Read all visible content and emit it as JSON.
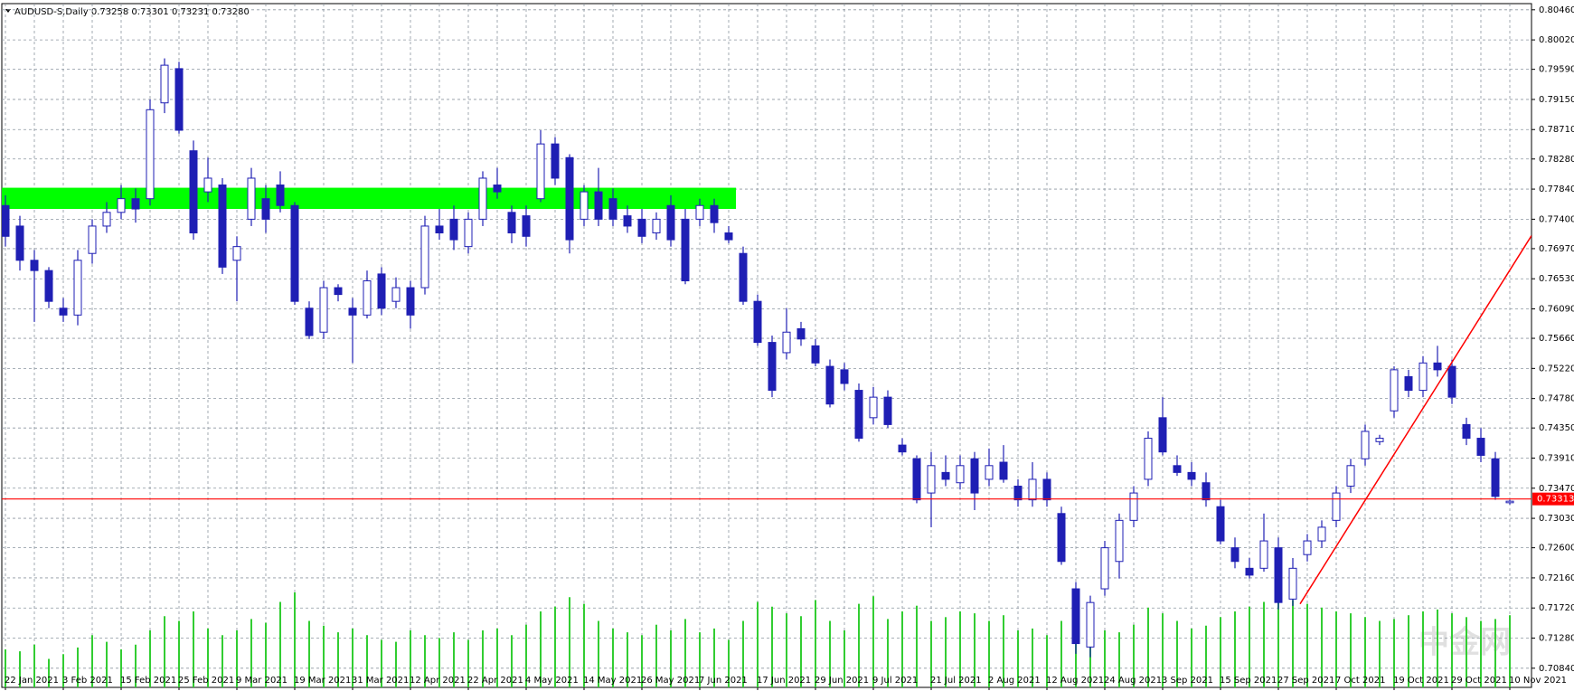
{
  "chart_data": {
    "type": "candlestick",
    "header": {
      "symbol": "AUDUSD-S,Daily",
      "quote": [
        0.73258,
        0.73301,
        0.73231,
        {
          "value": 0.7328,
          "label": "0.73280"
        }
      ]
    },
    "categories": [
      "22 Jan 2021",
      null,
      null,
      null,
      "3 Feb 2021",
      null,
      null,
      null,
      "15 Feb 2021",
      null,
      null,
      null,
      "25 Feb 2021",
      null,
      null,
      null,
      "9 Mar 2021",
      null,
      null,
      null,
      "19 Mar 2021",
      null,
      null,
      null,
      "31 Mar 2021",
      null,
      null,
      null,
      "12 Apr 2021",
      null,
      null,
      null,
      "22 Apr 2021",
      null,
      null,
      null,
      "4 May 2021",
      null,
      null,
      null,
      "14 May 2021",
      null,
      null,
      null,
      "26 May 2021",
      null,
      null,
      null,
      "7 Jun 2021",
      null,
      null,
      null,
      "17 Jun 2021",
      null,
      null,
      null,
      "29 Jun 2021",
      null,
      null,
      null,
      "9 Jul 2021",
      null,
      null,
      null,
      "21 Jul 2021",
      null,
      null,
      null,
      "2 Aug 2021",
      null,
      null,
      null,
      "12 Aug 2021",
      null,
      null,
      null,
      "24 Aug 2021",
      null,
      null,
      null,
      "3 Sep 2021",
      null,
      null,
      null,
      "15 Sep 2021",
      null,
      null,
      null,
      "27 Sep 2021",
      null,
      null,
      null,
      "7 Oct 2021",
      null,
      null,
      null,
      "19 Oct 2021",
      null,
      null,
      null,
      "29 Oct 2021",
      null,
      null,
      null,
      "10 Nov 2021"
    ],
    "candles": [
      [
        0.776,
        0.7775,
        0.77,
        0.7715
      ],
      [
        0.773,
        0.7745,
        0.7665,
        0.768
      ],
      [
        0.768,
        0.7695,
        0.759,
        0.7665
      ],
      [
        0.7665,
        0.767,
        0.761,
        0.762
      ],
      [
        0.761,
        0.7625,
        0.759,
        0.76
      ],
      [
        0.76,
        0.7695,
        0.7585,
        0.768
      ],
      [
        0.769,
        0.774,
        0.7675,
        0.773
      ],
      [
        0.773,
        0.7765,
        0.772,
        0.775
      ],
      [
        0.775,
        0.779,
        0.774,
        0.777
      ],
      [
        0.777,
        0.7785,
        0.7735,
        0.7755
      ],
      [
        0.777,
        0.7915,
        0.776,
        0.79
      ],
      [
        0.791,
        0.7975,
        0.7895,
        0.7965
      ],
      [
        0.796,
        0.797,
        0.7865,
        0.787
      ],
      [
        0.784,
        0.7855,
        0.771,
        0.772
      ],
      [
        0.778,
        0.783,
        0.7765,
        0.78
      ],
      [
        0.779,
        0.78,
        0.766,
        0.767
      ],
      [
        0.768,
        0.7715,
        0.762,
        0.77
      ],
      [
        0.774,
        0.7815,
        0.773,
        0.78
      ],
      [
        0.777,
        0.779,
        0.772,
        0.774
      ],
      [
        0.779,
        0.781,
        0.775,
        0.776
      ],
      [
        0.776,
        0.7765,
        0.7615,
        0.762
      ],
      [
        0.761,
        0.762,
        0.7565,
        0.757
      ],
      [
        0.7575,
        0.765,
        0.7565,
        0.764
      ],
      [
        0.764,
        0.7645,
        0.762,
        0.763
      ],
      [
        0.761,
        0.7625,
        0.753,
        0.76
      ],
      [
        0.76,
        0.7665,
        0.7595,
        0.765
      ],
      [
        0.766,
        0.767,
        0.76,
        0.761
      ],
      [
        0.762,
        0.7655,
        0.761,
        0.764
      ],
      [
        0.764,
        0.765,
        0.758,
        0.76
      ],
      [
        0.764,
        0.7745,
        0.763,
        0.773
      ],
      [
        0.773,
        0.7755,
        0.771,
        0.772
      ],
      [
        0.774,
        0.776,
        0.7695,
        0.771
      ],
      [
        0.77,
        0.775,
        0.769,
        0.774
      ],
      [
        0.774,
        0.781,
        0.773,
        0.78
      ],
      [
        0.779,
        0.7815,
        0.777,
        0.778
      ],
      [
        0.775,
        0.776,
        0.7705,
        0.772
      ],
      [
        0.7745,
        0.776,
        0.77,
        0.7715
      ],
      [
        0.777,
        0.787,
        0.7765,
        0.785
      ],
      [
        0.785,
        0.786,
        0.779,
        0.78
      ],
      [
        0.783,
        0.7835,
        0.769,
        0.771
      ],
      [
        0.774,
        0.779,
        0.773,
        0.778
      ],
      [
        0.778,
        0.7815,
        0.773,
        0.774
      ],
      [
        0.777,
        0.7785,
        0.773,
        0.774
      ],
      [
        0.7745,
        0.776,
        0.772,
        0.773
      ],
      [
        0.774,
        0.7755,
        0.7705,
        0.7715
      ],
      [
        0.772,
        0.775,
        0.771,
        0.774
      ],
      [
        0.776,
        0.7775,
        0.77,
        0.771
      ],
      [
        0.774,
        0.7755,
        0.7645,
        0.765
      ],
      [
        0.774,
        0.777,
        0.773,
        0.776
      ],
      [
        0.776,
        0.777,
        0.772,
        0.7735
      ],
      [
        0.772,
        0.773,
        0.7705,
        0.771
      ],
      [
        0.769,
        0.77,
        0.7615,
        0.762
      ],
      [
        0.762,
        0.763,
        0.7555,
        0.756
      ],
      [
        0.756,
        0.757,
        0.748,
        0.749
      ],
      [
        0.7545,
        0.761,
        0.7535,
        0.7575
      ],
      [
        0.758,
        0.759,
        0.7555,
        0.7565
      ],
      [
        0.7555,
        0.7565,
        0.7525,
        0.753
      ],
      [
        0.7525,
        0.7535,
        0.7465,
        0.747
      ],
      [
        0.752,
        0.753,
        0.749,
        0.75
      ],
      [
        0.749,
        0.75,
        0.7415,
        0.742
      ],
      [
        0.745,
        0.7495,
        0.744,
        0.748
      ],
      [
        0.748,
        0.749,
        0.7435,
        0.744
      ],
      [
        0.741,
        0.742,
        0.7395,
        0.74
      ],
      [
        0.739,
        0.7395,
        0.7325,
        0.733
      ],
      [
        0.734,
        0.74,
        0.729,
        0.738
      ],
      [
        0.737,
        0.7395,
        0.735,
        0.736
      ],
      [
        0.7355,
        0.7395,
        0.7345,
        0.738
      ],
      [
        0.739,
        0.74,
        0.7315,
        0.734
      ],
      [
        0.736,
        0.7405,
        0.735,
        0.738
      ],
      [
        0.7385,
        0.741,
        0.7355,
        0.736
      ],
      [
        0.735,
        0.736,
        0.732,
        0.733
      ],
      [
        0.733,
        0.7385,
        0.732,
        0.736
      ],
      [
        0.736,
        0.737,
        0.732,
        0.733
      ],
      [
        0.731,
        0.732,
        0.7235,
        0.724
      ],
      [
        0.72,
        0.721,
        0.7105,
        0.712
      ],
      [
        0.7115,
        0.719,
        0.71,
        0.718
      ],
      [
        0.72,
        0.727,
        0.719,
        0.726
      ],
      [
        0.724,
        0.731,
        0.7215,
        0.73
      ],
      [
        0.73,
        0.735,
        0.729,
        0.734
      ],
      [
        0.736,
        0.743,
        0.735,
        0.742
      ],
      [
        0.745,
        0.748,
        0.7395,
        0.74
      ],
      [
        0.738,
        0.7395,
        0.7365,
        0.737
      ],
      [
        0.737,
        0.7385,
        0.735,
        0.736
      ],
      [
        0.7355,
        0.737,
        0.732,
        0.733
      ],
      [
        0.732,
        0.733,
        0.7265,
        0.727
      ],
      [
        0.726,
        0.7275,
        0.723,
        0.724
      ],
      [
        0.723,
        0.7245,
        0.7215,
        0.722
      ],
      [
        0.723,
        0.731,
        0.7225,
        0.727
      ],
      [
        0.726,
        0.7275,
        0.717,
        0.718
      ],
      [
        0.7185,
        0.7245,
        0.7175,
        0.723
      ],
      [
        0.725,
        0.728,
        0.724,
        0.727
      ],
      [
        0.727,
        0.73,
        0.726,
        0.729
      ],
      [
        0.73,
        0.735,
        0.729,
        0.734
      ],
      [
        0.735,
        0.739,
        0.734,
        0.738
      ],
      [
        0.739,
        0.744,
        0.738,
        0.743
      ],
      [
        0.7415,
        0.7425,
        0.741,
        0.742
      ],
      [
        0.746,
        0.7525,
        0.745,
        0.752
      ],
      [
        0.751,
        0.752,
        0.748,
        0.749
      ],
      [
        0.749,
        0.754,
        0.748,
        0.753
      ],
      [
        0.753,
        0.7555,
        0.751,
        0.752
      ],
      [
        0.7525,
        0.7535,
        0.747,
        0.748
      ],
      [
        0.744,
        0.745,
        0.741,
        0.742
      ],
      [
        0.742,
        0.7435,
        0.7385,
        0.7395
      ],
      [
        0.739,
        0.74,
        0.733,
        0.7335
      ],
      [
        0.73258,
        0.73301,
        0.73231,
        0.7328
      ]
    ],
    "volume": [
      40,
      38,
      45,
      30,
      35,
      42,
      55,
      48,
      40,
      45,
      60,
      75,
      70,
      80,
      62,
      55,
      60,
      72,
      68,
      90,
      100,
      70,
      65,
      58,
      62,
      55,
      50,
      48,
      60,
      55,
      52,
      58,
      50,
      60,
      62,
      55,
      66,
      80,
      85,
      95,
      88,
      70,
      62,
      58,
      55,
      66,
      60,
      72,
      58,
      62,
      50,
      70,
      90,
      85,
      78,
      75,
      92,
      70,
      60,
      88,
      96,
      72,
      80,
      86,
      70,
      74,
      80,
      78,
      70,
      76,
      60,
      62,
      55,
      70,
      68,
      72,
      60,
      58,
      66,
      84,
      78,
      70,
      62,
      65,
      74,
      80,
      85,
      90,
      95,
      92,
      88,
      84,
      80,
      78,
      74,
      70,
      72,
      76,
      80,
      82,
      78,
      74,
      70,
      72,
      76
    ],
    "up_color": "#ffffff",
    "down_color": "#1f1fb4",
    "volume_color": "#32cd32",
    "ylim": [
      0.7056,
      0.8055
    ],
    "yticks": [
      {
        "value": 0.8046,
        "label": "0.80460"
      },
      {
        "value": 0.8002,
        "label": "0.80020"
      },
      {
        "value": 0.7959,
        "label": "0.79590"
      },
      {
        "value": 0.7915,
        "label": "0.79150"
      },
      {
        "value": 0.7871,
        "label": "0.78710"
      },
      {
        "value": 0.7828,
        "label": "0.78280"
      },
      {
        "value": 0.7784,
        "label": "0.77840"
      },
      {
        "value": 0.774,
        "label": "0.77400"
      },
      {
        "value": 0.7697,
        "label": "0.76970"
      },
      {
        "value": 0.7653,
        "label": "0.76530"
      },
      {
        "value": 0.7609,
        "label": "0.76090"
      },
      {
        "value": 0.7566,
        "label": "0.75660"
      },
      {
        "value": 0.7522,
        "label": "0.75220"
      },
      {
        "value": 0.7478,
        "label": "0.74780"
      },
      {
        "value": 0.7435,
        "label": "0.74350"
      },
      {
        "value": 0.7391,
        "label": "0.73910"
      },
      {
        "value": 0.7347,
        "label": "0.73470"
      },
      {
        "value": 0.7303,
        "label": "0.73030"
      },
      {
        "value": 0.726,
        "label": "0.72600"
      },
      {
        "value": 0.7216,
        "label": "0.72160"
      },
      {
        "value": 0.7172,
        "label": "0.71720"
      },
      {
        "value": 0.7128,
        "label": "0.71280"
      },
      {
        "value": 0.7084,
        "label": "0.70840"
      }
    ],
    "grid": true,
    "price_line": {
      "value": 0.73313,
      "color": "#ff0000"
    },
    "zone": {
      "from": 0.7755,
      "to": 0.7786,
      "start": -0.4,
      "end": 50.5,
      "color": "#00ff00"
    },
    "trendline": {
      "points": [
        [
          89.5,
          0.7178
        ],
        [
          105.5,
          0.7716
        ]
      ],
      "color": "#ff0000"
    },
    "watermark": "中金网"
  }
}
